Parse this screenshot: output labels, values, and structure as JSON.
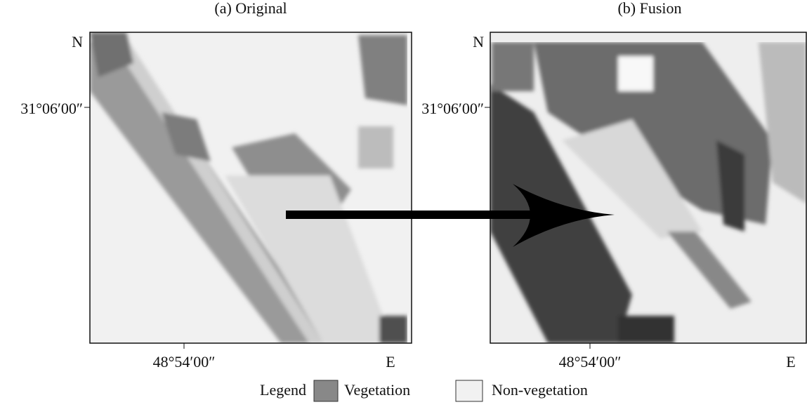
{
  "panels": [
    {
      "title": "(a) Original",
      "north": "N",
      "latitude": "31°06′00″",
      "longitude": "48°54′00″",
      "east": "E"
    },
    {
      "title": "(b) Fusion",
      "north": "N",
      "latitude": "31°06′00″",
      "longitude": "48°54′00″",
      "east": "E"
    }
  ],
  "legend": {
    "title": "Legend",
    "items": [
      "Vegetation",
      "Non-vegetation"
    ]
  }
}
